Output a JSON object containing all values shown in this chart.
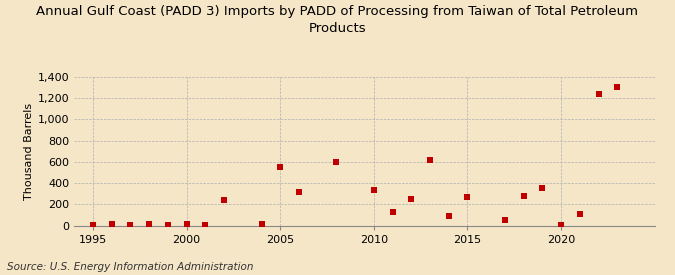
{
  "title": "Annual Gulf Coast (PADD 3) Imports by PADD of Processing from Taiwan of Total Petroleum\nProducts",
  "ylabel": "Thousand Barrels",
  "source": "Source: U.S. Energy Information Administration",
  "background_color": "#f5e6c8",
  "plot_background_color": "#f5e6c8",
  "marker_color": "#c00000",
  "marker_size": 22,
  "xlim": [
    1994,
    2025
  ],
  "ylim": [
    0,
    1400
  ],
  "yticks": [
    0,
    200,
    400,
    600,
    800,
    1000,
    1200,
    1400
  ],
  "ytick_labels": [
    "0",
    "200",
    "400",
    "600",
    "800",
    "1,000",
    "1,200",
    "1,400"
  ],
  "xticks": [
    1995,
    2000,
    2005,
    2010,
    2015,
    2020
  ],
  "years": [
    1995,
    1996,
    1997,
    1998,
    1999,
    2000,
    2001,
    2002,
    2004,
    2005,
    2006,
    2008,
    2010,
    2011,
    2012,
    2013,
    2014,
    2015,
    2017,
    2018,
    2019,
    2020,
    2021,
    2022,
    2023
  ],
  "values": [
    5,
    10,
    8,
    10,
    8,
    10,
    5,
    240,
    10,
    550,
    315,
    600,
    335,
    130,
    250,
    620,
    90,
    270,
    50,
    280,
    350,
    5,
    110,
    1240,
    1305
  ],
  "title_fontsize": 9.5,
  "axis_fontsize": 8,
  "tick_fontsize": 8,
  "source_fontsize": 7.5
}
